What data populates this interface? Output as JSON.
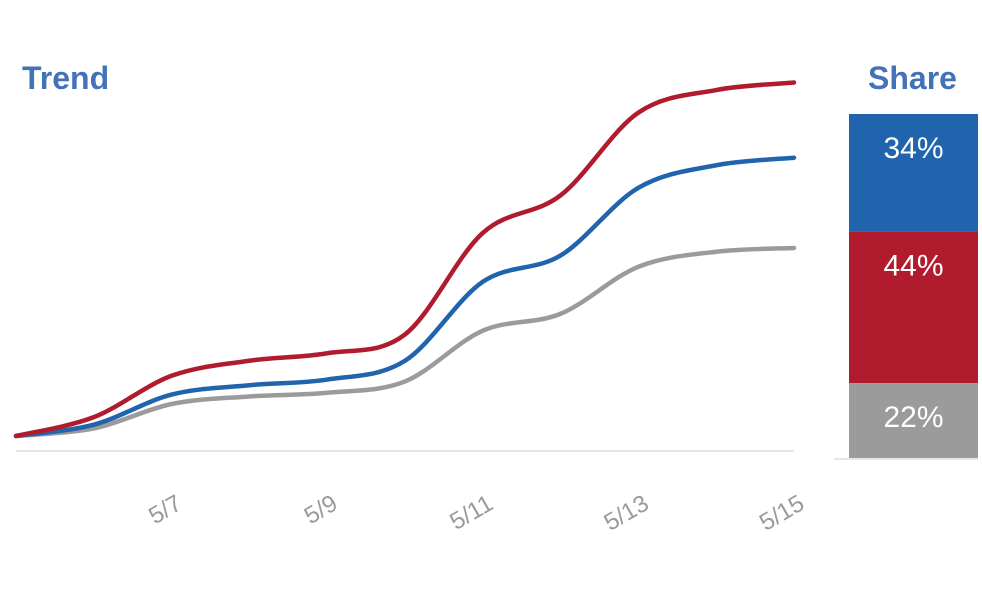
{
  "chart_data": [
    {
      "type": "line",
      "title": "Trend",
      "xlabel": "",
      "ylabel": "",
      "x_ticks": [
        "5/7",
        "5/9",
        "5/11",
        "5/13",
        "5/15"
      ],
      "x": [
        "5/5",
        "5/6",
        "5/7",
        "5/8",
        "5/9",
        "5/10",
        "5/11",
        "5/12",
        "5/13",
        "5/14",
        "5/15"
      ],
      "ylim": [
        0,
        1000
      ],
      "grid": false,
      "legend": "none",
      "series": [
        {
          "color": "#b01c2e",
          "values": [
            40,
            90,
            200,
            240,
            260,
            310,
            580,
            680,
            900,
            960,
            980
          ]
        },
        {
          "color": "#2064ad",
          "values": [
            40,
            70,
            150,
            175,
            190,
            240,
            450,
            520,
            700,
            760,
            780
          ]
        },
        {
          "color": "#9b9b9b",
          "values": [
            40,
            60,
            125,
            145,
            155,
            185,
            320,
            365,
            490,
            530,
            540
          ]
        }
      ]
    },
    {
      "type": "bar",
      "title": "Share",
      "stacked": true,
      "categories": [
        "34%",
        "44%",
        "22%"
      ],
      "values": [
        34,
        44,
        22
      ],
      "colors": [
        "#2064ad",
        "#b01c2e",
        "#9b9b9b"
      ]
    }
  ]
}
